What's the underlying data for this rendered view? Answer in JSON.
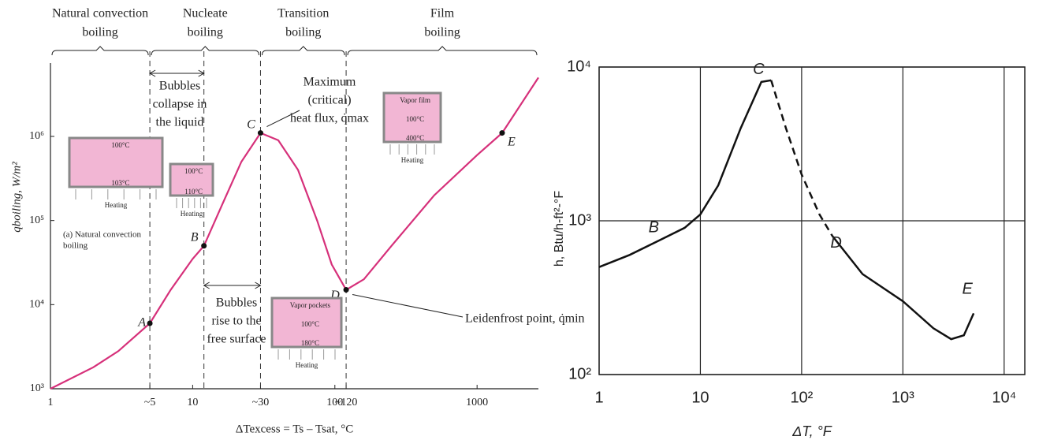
{
  "chart_data": [
    {
      "type": "line",
      "xscale": "log",
      "yscale": "log",
      "color": "#d6307a",
      "marker_color": "#111111",
      "xlabel": "ΔTexcess = Ts – Tsat, °C",
      "ylabel": "qboiling, W/m²",
      "xlim": [
        1,
        2700
      ],
      "ylim": [
        1000,
        6000000
      ],
      "xticks": [
        1,
        {
          "value": 5,
          "label": "~5"
        },
        10,
        {
          "value": 30,
          "label": "~30"
        },
        100,
        {
          "value": 120,
          "label": "~120"
        },
        1000
      ],
      "yticks": [
        {
          "value": 1000,
          "label": "10³"
        },
        {
          "value": 10000,
          "label": "10⁴"
        },
        {
          "value": 100000,
          "label": "10⁵"
        },
        {
          "value": 1000000,
          "label": "10⁶"
        }
      ],
      "dividers": [
        5,
        12,
        30,
        120
      ],
      "regions": [
        {
          "label": [
            "Natural convection",
            "boiling"
          ],
          "range": [
            1,
            5
          ]
        },
        {
          "label": [
            "Nucleate",
            "boiling"
          ],
          "range": [
            5,
            30
          ]
        },
        {
          "label": [
            "Transition",
            "boiling"
          ],
          "range": [
            30,
            120
          ]
        },
        {
          "label": [
            "Film",
            "boiling"
          ],
          "range": [
            120,
            2700
          ]
        }
      ],
      "series": [
        {
          "x": [
            1,
            2,
            3,
            5,
            7,
            10,
            12,
            16,
            22,
            30,
            40,
            55,
            75,
            95,
            120,
            160,
            250,
            500,
            1000,
            1500,
            2700
          ],
          "values": [
            1000,
            1800,
            2800,
            6000,
            15000,
            35000,
            50000,
            150000,
            500000,
            1100000,
            900000,
            400000,
            100000,
            30000,
            15000,
            20000,
            50000,
            200000,
            600000,
            1100000,
            5000000
          ]
        }
      ],
      "points": [
        {
          "label": "A",
          "x": 5,
          "y": 6000
        },
        {
          "label": "B",
          "x": 12,
          "y": 50000
        },
        {
          "label": "C",
          "x": 30,
          "y": 1100000
        },
        {
          "label": "D",
          "x": 120,
          "y": 15000
        },
        {
          "label": "E",
          "x": 1500,
          "y": 1100000
        }
      ],
      "annotations": [
        [
          "Bubbles",
          "collapse in",
          "the liquid"
        ],
        [
          "Bubbles",
          "rise to the",
          "free surface"
        ],
        [
          "Maximum",
          "(critical)",
          "heat flux, q̇max"
        ],
        [
          "Leidenfrost point, q̇min"
        ],
        [
          "(a) Natural convection",
          "boiling"
        ]
      ],
      "insets": [
        [
          "100°C",
          "103°C",
          "Heating"
        ],
        [
          "100°C",
          "110°C",
          "Heating"
        ],
        [
          "Vapor pockets",
          "100°C",
          "180°C",
          "Heating"
        ],
        [
          "Vapor film",
          "100°C",
          "400°C",
          "Heating"
        ]
      ]
    },
    {
      "type": "line",
      "xscale": "log",
      "yscale": "log",
      "color": "#111111",
      "grid": true,
      "xlabel": "ΔT, °F",
      "ylabel": "h, Btu/h-ft²-°F",
      "xlim": [
        1,
        16000
      ],
      "ylim": [
        100,
        10000
      ],
      "xticks": [
        1,
        10,
        {
          "value": 100,
          "label": "10²"
        },
        {
          "value": 1000,
          "label": "10³"
        },
        {
          "value": 10000,
          "label": "10⁴"
        }
      ],
      "yticks": [
        {
          "value": 100,
          "label": "10²"
        },
        {
          "value": 1000,
          "label": "10³"
        },
        {
          "value": 10000,
          "label": "10⁴"
        }
      ],
      "series": [
        {
          "dashed": false,
          "x": [
            1,
            2,
            4,
            7,
            10,
            15,
            25,
            40,
            50
          ],
          "values": [
            500,
            600,
            750,
            900,
            1100,
            1700,
            4000,
            8000,
            8200
          ]
        },
        {
          "dashed": true,
          "x": [
            50,
            70,
            100,
            150,
            200
          ],
          "values": [
            8200,
            4000,
            2000,
            1100,
            800
          ]
        },
        {
          "dashed": false,
          "x": [
            200,
            400,
            1000,
            2000,
            3000,
            4000,
            5000
          ],
          "values": [
            800,
            450,
            300,
            200,
            170,
            180,
            250
          ]
        }
      ],
      "points": [
        {
          "label": "B",
          "x": 4,
          "y": 750
        },
        {
          "label": "C",
          "x": 45,
          "y": 8000
        },
        {
          "label": "D",
          "x": 200,
          "y": 800
        },
        {
          "label": "E",
          "x": 5000,
          "y": 250
        }
      ]
    }
  ]
}
